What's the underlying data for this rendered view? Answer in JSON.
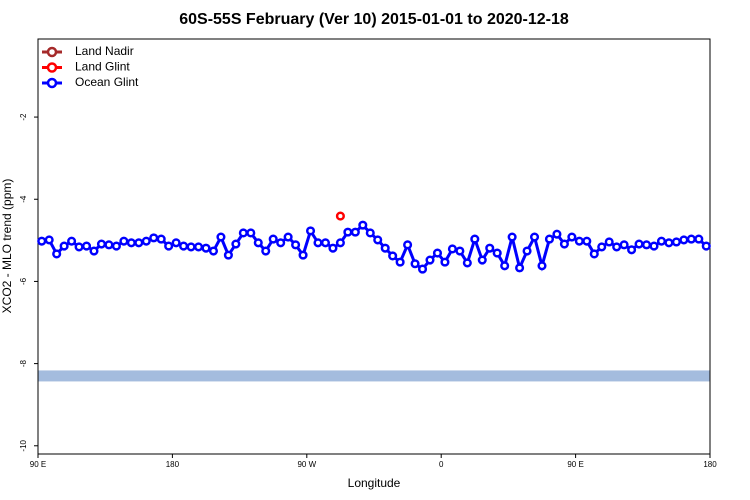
{
  "chart_data": {
    "type": "line",
    "title": "60S-55S February (Ver 10)   2015-01-01 to 2020-12-18",
    "x_label": "Longitude",
    "y_label": "XCO2 - MLO trend (ppm)",
    "xlim": [
      90,
      540
    ],
    "ylim": [
      -10.2,
      -0.1
    ],
    "xticks": [
      {
        "value": 90,
        "label": "90 E"
      },
      180,
      {
        "value": 270,
        "label": "90 W"
      },
      {
        "value": 360,
        "label": "0"
      },
      {
        "value": 450,
        "label": "90 E"
      },
      {
        "value": 540,
        "label": "180"
      }
    ],
    "yticks": [
      -10,
      -8,
      -6,
      -4,
      -2
    ],
    "legend": "top-left",
    "band": {
      "value": -8.3,
      "color": "#a4bcde"
    },
    "series": [
      {
        "name": "Land Nadir",
        "color": "#a52a2a",
        "x": [],
        "values": []
      },
      {
        "name": "Land Glint",
        "color": "#ff0000",
        "x": [
          292.5
        ],
        "values": [
          -4.41
        ]
      },
      {
        "name": "Ocean Glint",
        "color": "#0000ff",
        "x": [
          92.5,
          97.5,
          102.5,
          107.5,
          112.5,
          117.5,
          122.5,
          127.5,
          132.5,
          137.5,
          142.5,
          147.5,
          152.5,
          157.5,
          162.5,
          167.5,
          172.5,
          177.5,
          182.5,
          187.5,
          192.5,
          197.5,
          202.5,
          207.5,
          212.5,
          217.5,
          222.5,
          227.5,
          232.5,
          237.5,
          242.5,
          247.5,
          252.5,
          257.5,
          262.5,
          267.5,
          272.5,
          277.5,
          282.5,
          287.5,
          292.5,
          297.5,
          302.5,
          307.5,
          312.5,
          317.5,
          322.5,
          327.5,
          332.5,
          337.5,
          342.5,
          347.5,
          352.5,
          357.5,
          362.5,
          367.5,
          372.5,
          377.5,
          382.5,
          387.5,
          392.5,
          397.5,
          402.5,
          407.5,
          412.5,
          417.5,
          422.5,
          427.5,
          432.5,
          437.5,
          442.5,
          447.5,
          452.5,
          457.5,
          462.5,
          467.5,
          472.5,
          477.5,
          482.5,
          487.5,
          492.5,
          497.5,
          502.5,
          507.5,
          512.5,
          517.5,
          522.5,
          527.5,
          532.5,
          537.5
        ],
        "values": [
          -5.02,
          -4.99,
          -5.33,
          -5.14,
          -5.02,
          -5.16,
          -5.14,
          -5.26,
          -5.09,
          -5.11,
          -5.14,
          -5.02,
          -5.06,
          -5.06,
          -5.02,
          -4.94,
          -4.97,
          -5.14,
          -5.06,
          -5.14,
          -5.16,
          -5.16,
          -5.19,
          -5.26,
          -4.92,
          -5.36,
          -5.09,
          -4.82,
          -4.82,
          -5.06,
          -5.26,
          -4.97,
          -5.06,
          -4.92,
          -5.11,
          -5.36,
          -4.77,
          -5.06,
          -5.06,
          -5.19,
          -5.06,
          -4.8,
          -4.8,
          -4.63,
          -4.82,
          -4.99,
          -5.19,
          -5.38,
          -5.53,
          -5.11,
          -5.57,
          -5.7,
          -5.48,
          -5.31,
          -5.53,
          -5.21,
          -5.26,
          -5.55,
          -4.97,
          -5.48,
          -5.19,
          -5.31,
          -5.62,
          -4.92,
          -5.67,
          -5.26,
          -4.92,
          -5.62,
          -4.97,
          -4.85,
          -5.09,
          -4.92,
          -5.02,
          -5.02,
          -5.33,
          -5.16,
          -5.04,
          -5.16,
          -5.11,
          -5.23,
          -5.09,
          -5.11,
          -5.14,
          -5.02,
          -5.06,
          -5.04,
          -4.99,
          -4.97,
          -4.97,
          -5.14
        ]
      }
    ]
  }
}
